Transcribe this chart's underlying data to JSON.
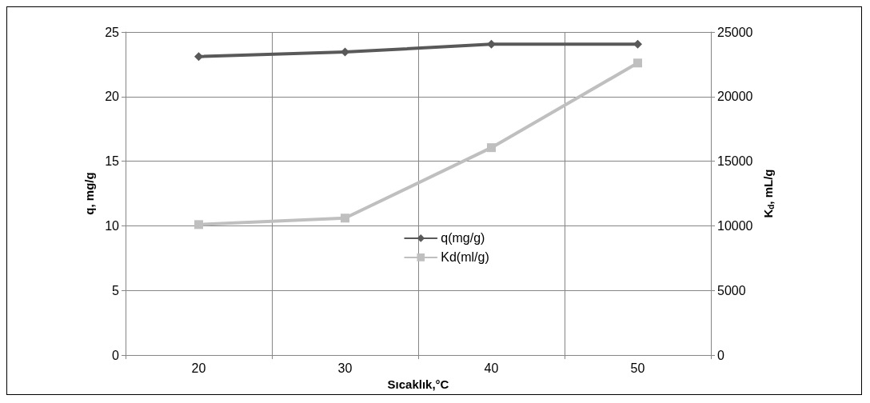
{
  "chart_data": {
    "type": "line",
    "xlabel": "Sıcaklık,°C",
    "ylabel": "q, mg/g",
    "y2label": "K$_{d}$, mL/g",
    "categories": [
      "20",
      "30",
      "40",
      "50"
    ],
    "series": [
      {
        "name": "q(mg/g)",
        "color": "#595959",
        "marker": "diamond",
        "values": [
          23.1,
          23.45,
          24.05,
          24.05
        ]
      },
      {
        "name": "Kd(ml/g)",
        "color": "#bfbfbf",
        "marker": "square",
        "axis": "y2",
        "values": [
          10100,
          10600,
          16050,
          22600
        ]
      }
    ],
    "ylim": [
      0,
      25
    ],
    "yticks": [
      0,
      5,
      10,
      15,
      20,
      25
    ],
    "y2lim": [
      0,
      25000
    ],
    "y2ticks": [
      0,
      5000,
      10000,
      15000,
      20000,
      25000
    ],
    "grid": true,
    "legend": "center",
    "line_style": "solid"
  }
}
